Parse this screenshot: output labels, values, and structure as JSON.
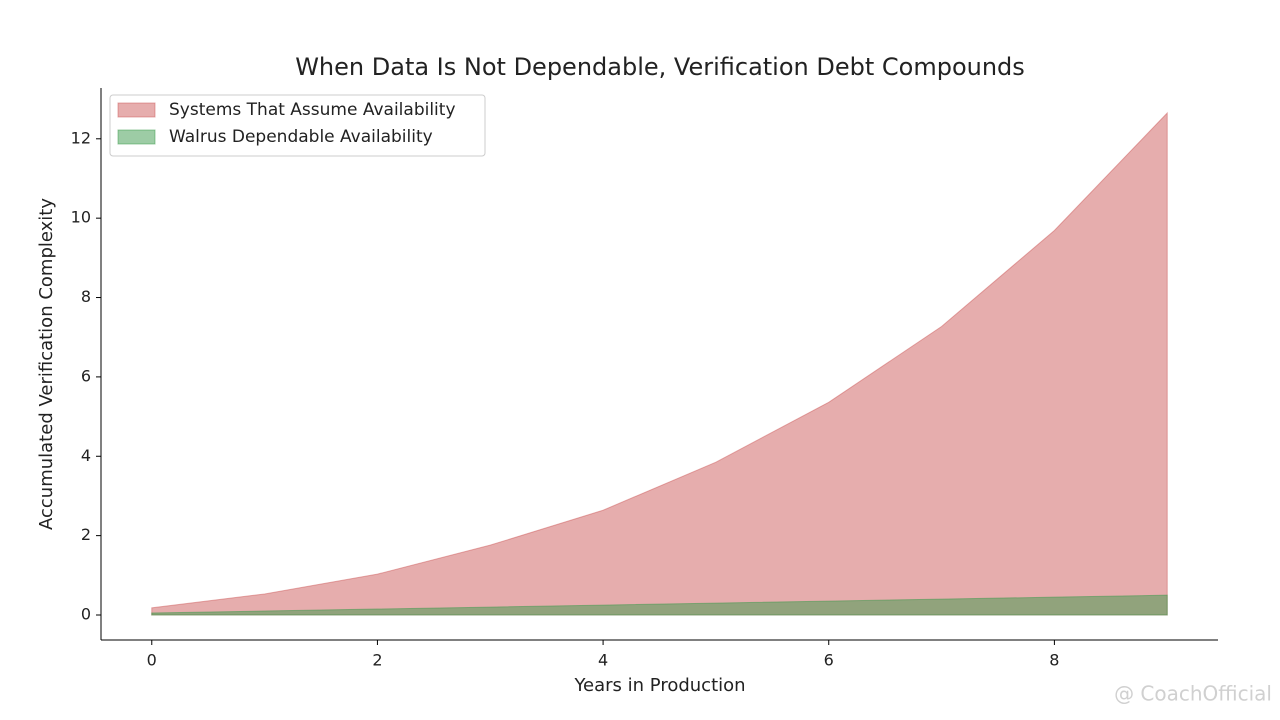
{
  "chart_data": {
    "type": "area",
    "title": "When Data Is Not Dependable, Verification Debt Compounds",
    "x_label": "Years in Production",
    "y_label": "Accumulated Verification Complexity",
    "x": [
      0,
      1,
      2,
      3,
      4,
      5,
      6,
      7,
      8,
      9
    ],
    "series": [
      {
        "name": "Systems That Assume Availability",
        "color": "#cd5c5c",
        "values": [
          0.18,
          0.53,
          1.03,
          1.76,
          2.64,
          3.85,
          5.36,
          7.27,
          9.69,
          12.65
        ]
      },
      {
        "name": "Walrus Dependable Availability",
        "color": "#3c9a4c",
        "values": [
          0.05,
          0.1,
          0.15,
          0.2,
          0.25,
          0.3,
          0.35,
          0.4,
          0.45,
          0.5
        ]
      }
    ],
    "alpha": 0.5,
    "xlim": [
      -0.45,
      9.45
    ],
    "xticks": [
      0,
      2,
      4,
      6,
      8
    ],
    "ylim": [
      -0.63,
      13.28
    ],
    "yticks": [
      0,
      2,
      4,
      6,
      8,
      10,
      12
    ],
    "legend": "upper left",
    "watermark": "@ CoachOfficial"
  }
}
